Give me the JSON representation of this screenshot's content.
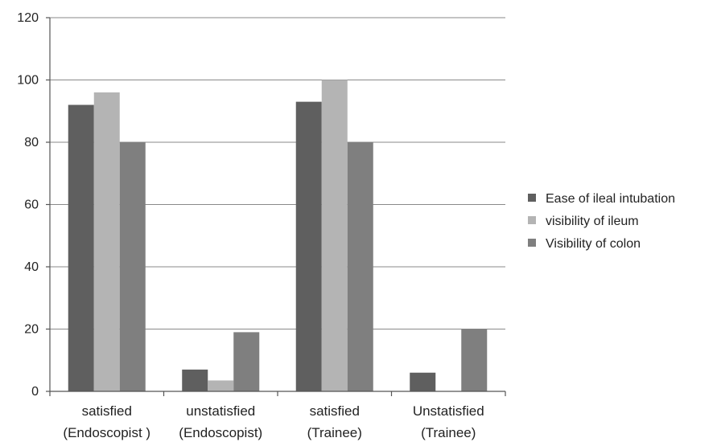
{
  "chart_data": {
    "type": "bar",
    "title": "",
    "xlabel": "",
    "ylabel": "",
    "ylim": [
      0,
      120
    ],
    "yticks": [
      0,
      20,
      40,
      60,
      80,
      100,
      120
    ],
    "grid": true,
    "legend_position": "right",
    "categories": [
      [
        "satisfied",
        "(Endoscopist )"
      ],
      [
        "unstatisfied",
        "(Endoscopist)"
      ],
      [
        "satisfied",
        "(Trainee)"
      ],
      [
        "Unstatisfied",
        "(Trainee)"
      ]
    ],
    "series": [
      {
        "name": "Ease of ileal intubation",
        "color": "#5f5f5f",
        "values": [
          92,
          7,
          93,
          6
        ]
      },
      {
        "name": "visibility  of ileum",
        "color": "#b4b4b4",
        "values": [
          96,
          3.5,
          100,
          0
        ]
      },
      {
        "name": "Visibility of colon",
        "color": "#7f7f7f",
        "values": [
          80,
          19,
          80,
          20
        ]
      }
    ]
  }
}
